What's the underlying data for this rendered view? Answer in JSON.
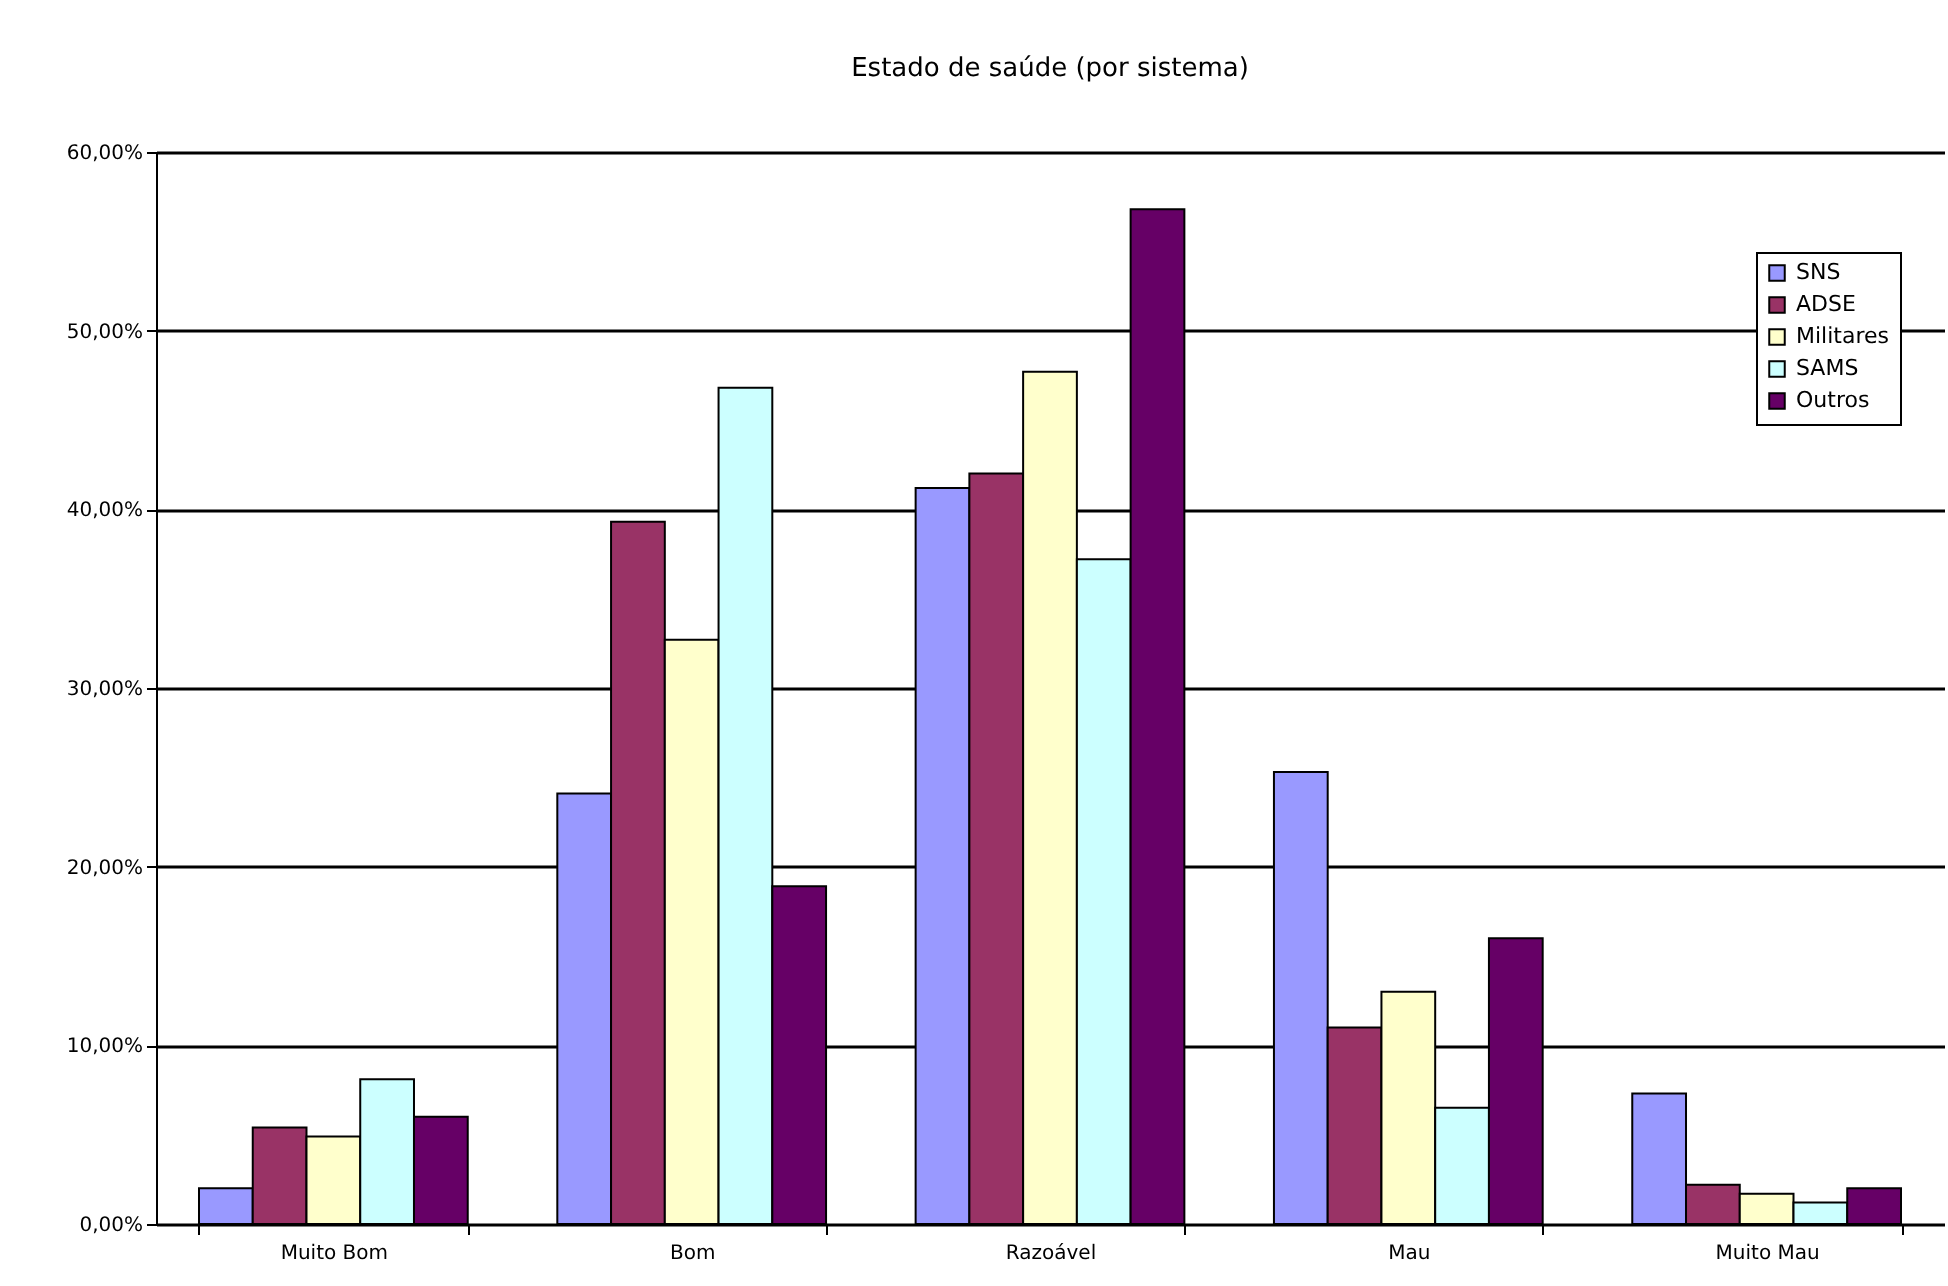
{
  "chart_data": {
    "type": "bar",
    "title": "Estado de saúde (por sistema)",
    "categories": [
      "Muito Bom",
      "Bom",
      "Razoável",
      "Mau",
      "Muito Mau"
    ],
    "series": [
      {
        "name": "SNS",
        "color": "#9999ff",
        "values": [
          2.0,
          24.1,
          41.2,
          25.3,
          7.3
        ]
      },
      {
        "name": "ADSE",
        "color": "#993366",
        "values": [
          5.4,
          39.3,
          42.0,
          11.0,
          2.2
        ]
      },
      {
        "name": "Militares",
        "color": "#ffffcc",
        "values": [
          4.9,
          32.7,
          47.7,
          13.0,
          1.7
        ]
      },
      {
        "name": "SAMS",
        "color": "#ccffff",
        "values": [
          8.1,
          46.8,
          37.2,
          6.5,
          1.2
        ]
      },
      {
        "name": "Outros",
        "color": "#660066",
        "values": [
          6.0,
          18.9,
          56.8,
          16.0,
          2.0
        ]
      }
    ],
    "ylim": [
      0,
      60
    ],
    "yticks": [
      {
        "value": 0,
        "label": "0,00%"
      },
      {
        "value": 10,
        "label": "10,00%"
      },
      {
        "value": 20,
        "label": "20,00%"
      },
      {
        "value": 30,
        "label": "30,00%"
      },
      {
        "value": 40,
        "label": "40,00%"
      },
      {
        "value": 50,
        "label": "50,00%"
      },
      {
        "value": 60,
        "label": "60,00%"
      }
    ],
    "grid": "y",
    "legend": "top right"
  }
}
